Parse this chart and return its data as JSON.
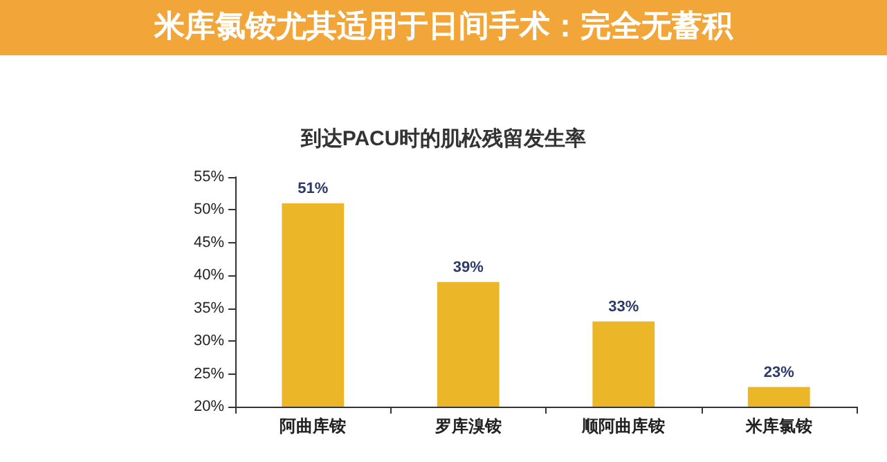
{
  "chart_data": {
    "type": "bar",
    "title": "米库氯铵尤其适用于日间手术：完全无蓄积",
    "subtitle": "到达PACU时的肌松残留发生率",
    "categories": [
      "阿曲库铵",
      "罗库溴铵",
      "顺阿曲库铵",
      "米库氯铵"
    ],
    "values": [
      51,
      39,
      33,
      23
    ],
    "value_labels": [
      "51%",
      "39%",
      "33%",
      "23%"
    ],
    "color": "#ebb728",
    "ylim": [
      20,
      55
    ],
    "yticks": [
      {
        "value": 20,
        "label": "20%"
      },
      {
        "value": 25,
        "label": "25%"
      },
      {
        "value": 30,
        "label": "30%"
      },
      {
        "value": 35,
        "label": "35%"
      },
      {
        "value": 40,
        "label": "40%"
      },
      {
        "value": 45,
        "label": "45%"
      },
      {
        "value": 50,
        "label": "50%"
      },
      {
        "value": 55,
        "label": "55%"
      }
    ],
    "grid": false
  }
}
